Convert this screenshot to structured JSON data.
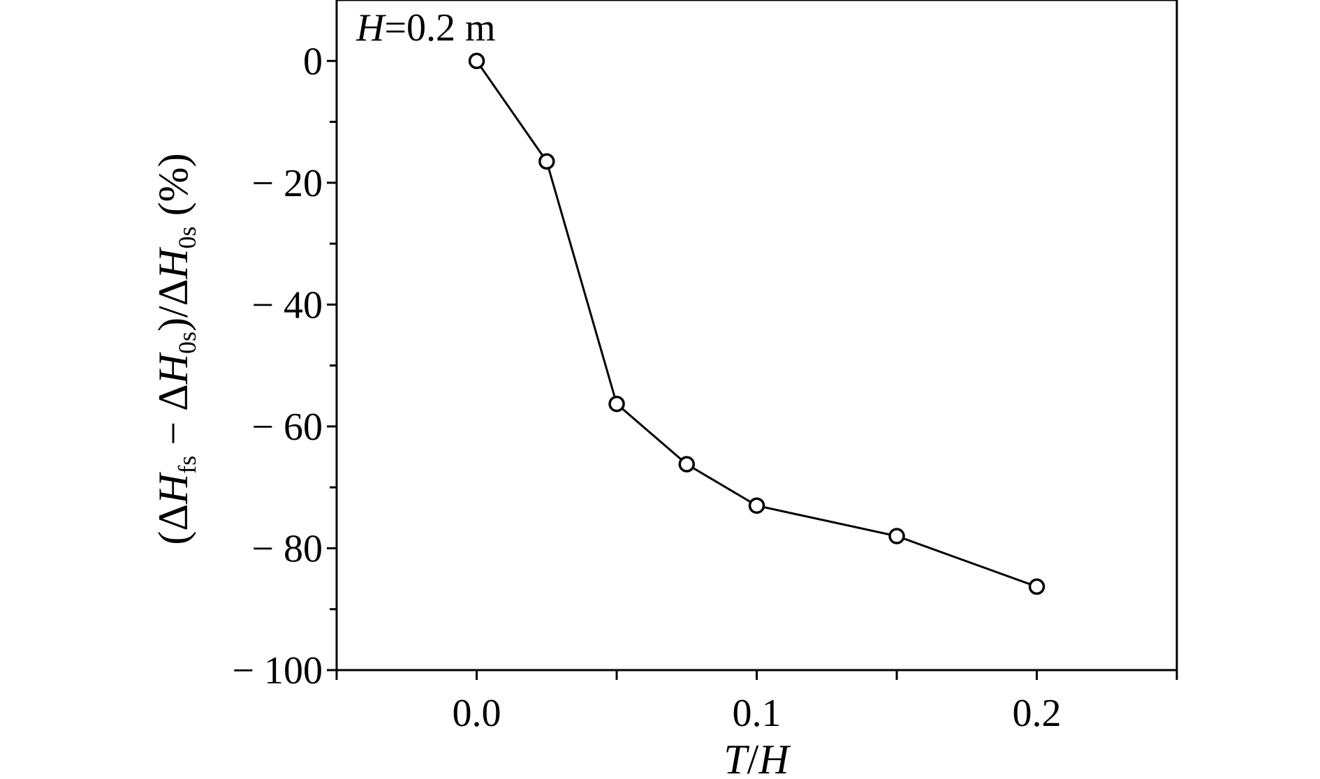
{
  "chart_data": {
    "type": "line",
    "annotation": {
      "italic": "H",
      "rest": "=0.2 m"
    },
    "xlabel": {
      "part1": "T",
      "sep": "/",
      "part2": "H"
    },
    "ylabel": {
      "open": "(Δ",
      "h1": "H",
      "sub1": "fs",
      "minus": " − Δ",
      "h2": "H",
      "sub2": "0s",
      "close_slash": ")/Δ",
      "h3": "H",
      "sub3": "0s",
      "unit": " (%)"
    },
    "xlim": [
      -0.05,
      0.25
    ],
    "ylim": [
      -100,
      10
    ],
    "x_ticks": [
      {
        "value": 0.0,
        "label": "0.0"
      },
      {
        "value": 0.1,
        "label": "0.1"
      },
      {
        "value": 0.2,
        "label": "0.2"
      }
    ],
    "x_minor_ticks": [
      -0.05,
      0.05,
      0.15,
      0.25
    ],
    "y_ticks": [
      {
        "value": 0,
        "label": "0"
      },
      {
        "value": -20,
        "label": "− 20"
      },
      {
        "value": -40,
        "label": "− 40"
      },
      {
        "value": -60,
        "label": "− 60"
      },
      {
        "value": -80,
        "label": "− 80"
      },
      {
        "value": -100,
        "label": "− 100"
      }
    ],
    "y_minor_ticks": [
      -10,
      -30,
      -50,
      -70,
      -90
    ],
    "grid": false,
    "series": [
      {
        "marker": "open-circle",
        "color": "#000000",
        "x": [
          0.0,
          0.025,
          0.05,
          0.075,
          0.1,
          0.15,
          0.2
        ],
        "y": [
          0,
          -16.5,
          -56.3,
          -66.2,
          -73.0,
          -78.0,
          -86.3
        ]
      }
    ]
  }
}
